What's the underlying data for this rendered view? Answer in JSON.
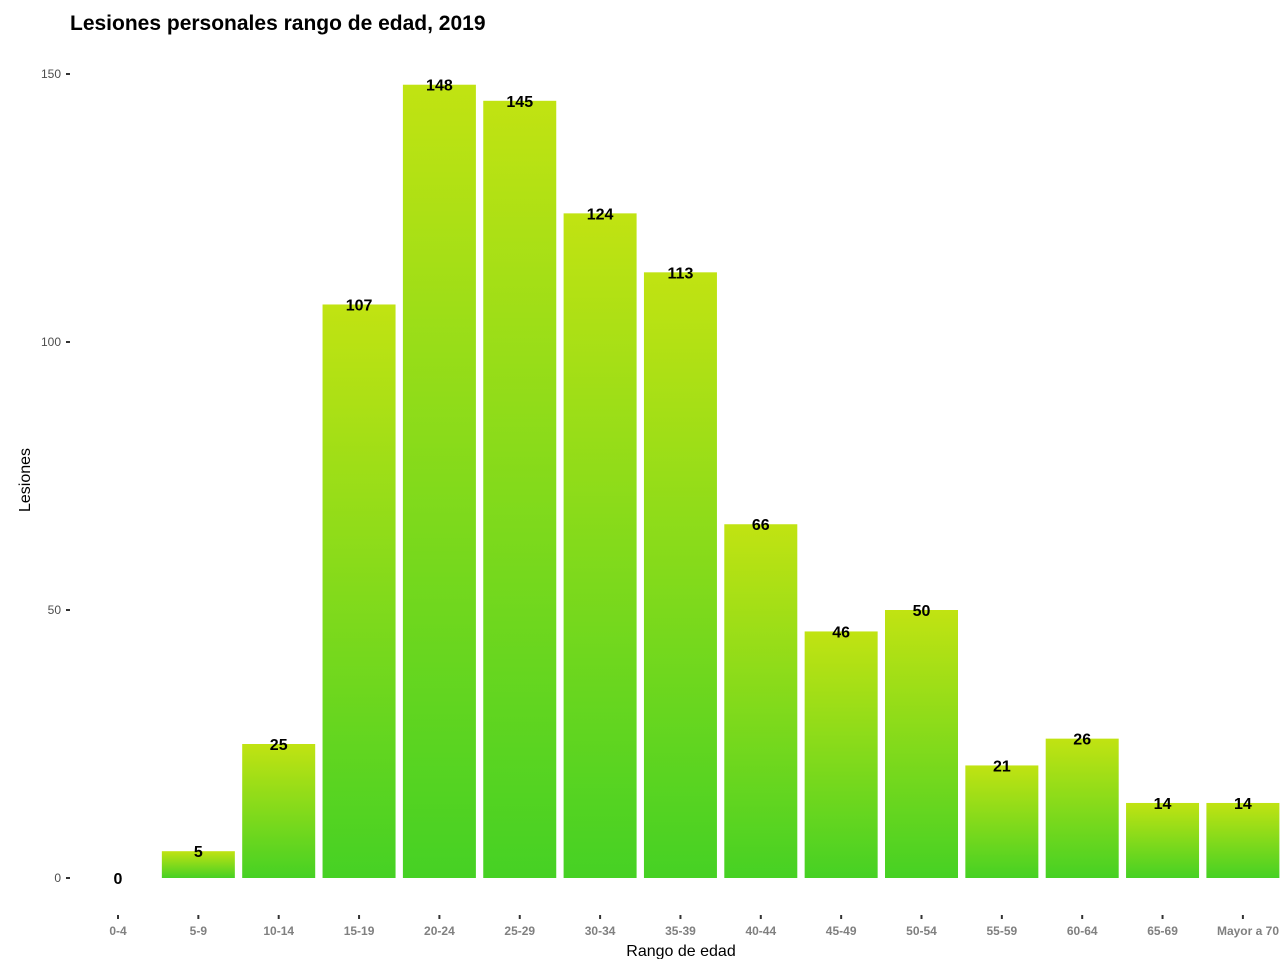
{
  "chart_data": {
    "type": "bar",
    "title": "Lesiones personales rango de edad, 2019",
    "xlabel": "Rango de edad",
    "ylabel": "Lesiones",
    "categories": [
      "0-4",
      "5-9",
      "10-14",
      "15-19",
      "20-24",
      "25-29",
      "30-34",
      "35-39",
      "40-44",
      "45-49",
      "50-54",
      "55-59",
      "60-64",
      "65-69",
      "Mayor a 70"
    ],
    "values": [
      0,
      5,
      25,
      107,
      148,
      145,
      124,
      113,
      66,
      46,
      50,
      21,
      26,
      14,
      14
    ],
    "yticks": [
      0,
      50,
      100,
      150
    ],
    "ylim": [
      0,
      150
    ],
    "grid": false,
    "legend": "none",
    "colors": {
      "bar_top": "#c1e312",
      "bar_bottom": "#46d124"
    }
  }
}
